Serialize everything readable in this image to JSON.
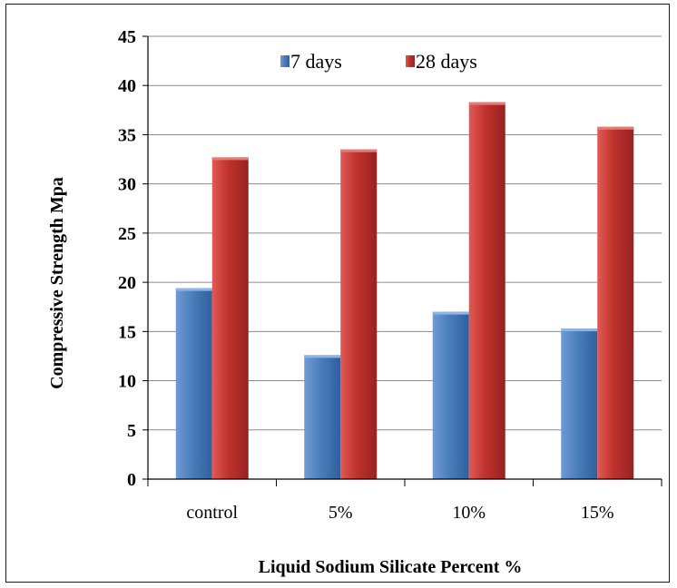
{
  "chart_data": {
    "type": "bar",
    "title": "",
    "xlabel": "Liquid Sodium Silicate Percent %",
    "ylabel": "Compressive Strength Mpa",
    "categories": [
      "control",
      "5%",
      "10%",
      "15%"
    ],
    "series": [
      {
        "name": "7 days",
        "values": [
          19.4,
          12.6,
          17.0,
          15.3
        ],
        "color": "#4a7ebb"
      },
      {
        "name": "28 days",
        "values": [
          32.7,
          33.5,
          38.3,
          35.8
        ],
        "color": "#c0312d"
      }
    ],
    "ylim": [
      0,
      45
    ],
    "yticks": [
      0,
      5,
      10,
      15,
      20,
      25,
      30,
      35,
      40,
      45
    ],
    "grid": true,
    "legend_position": "top-center"
  }
}
